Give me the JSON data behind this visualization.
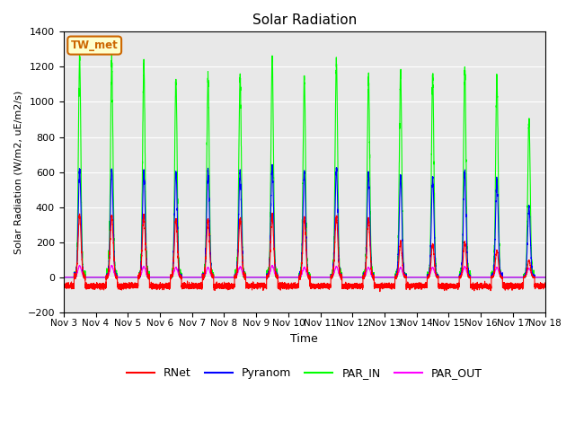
{
  "title": "Solar Radiation",
  "ylabel": "Solar Radiation (W/m2, uE/m2/s)",
  "xlabel": "Time",
  "ylim": [
    -200,
    1400
  ],
  "yticks": [
    -200,
    0,
    200,
    400,
    600,
    800,
    1000,
    1200,
    1400
  ],
  "xlim": [
    0,
    15
  ],
  "xtick_labels": [
    "Nov 3",
    "Nov 4",
    "Nov 5",
    "Nov 6",
    "Nov 7",
    "Nov 8",
    "Nov 9",
    "Nov 10",
    "Nov 11",
    "Nov 12",
    "Nov 13",
    "Nov 14",
    "Nov 15",
    "Nov 16",
    "Nov 17",
    "Nov 18"
  ],
  "xtick_positions": [
    0,
    1,
    2,
    3,
    4,
    5,
    6,
    7,
    8,
    9,
    10,
    11,
    12,
    13,
    14,
    15
  ],
  "colors": {
    "RNet": "#ff0000",
    "Pyranom": "#0000ff",
    "PAR_IN": "#00ff00",
    "PAR_OUT": "#ff00ff"
  },
  "legend_labels": [
    "RNet",
    "Pyranom",
    "PAR_IN",
    "PAR_OUT"
  ],
  "annotation_text": "TW_met",
  "annotation_color": "#cc6600",
  "background_color": "#e8e8e8",
  "n_days": 15,
  "par_in_peaks": [
    1250,
    1230,
    1205,
    1115,
    1130,
    1140,
    1250,
    1140,
    1220,
    1135,
    1160,
    1130,
    1185,
    1145,
    900
  ],
  "par_out_peaks": [
    65,
    65,
    60,
    55,
    55,
    60,
    65,
    55,
    60,
    55,
    55,
    55,
    60,
    55,
    50
  ],
  "pyranom_peaks": [
    620,
    620,
    605,
    600,
    610,
    600,
    640,
    610,
    620,
    590,
    575,
    565,
    600,
    555,
    405
  ],
  "rnet_peaks": [
    355,
    350,
    355,
    330,
    325,
    330,
    350,
    340,
    340,
    330,
    200,
    185,
    200,
    155,
    95
  ],
  "rnet_night": -50,
  "figsize": [
    6.4,
    4.8
  ],
  "dpi": 100
}
